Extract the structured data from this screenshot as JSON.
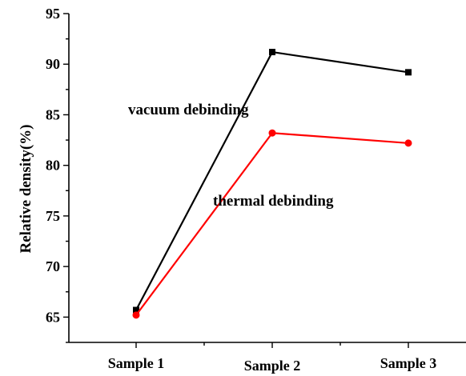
{
  "chart_data": {
    "type": "line",
    "categories": [
      "Sample 1",
      "Sample 2",
      "Sample 3"
    ],
    "series": [
      {
        "values": [
          65.7,
          91.2,
          89.2
        ],
        "color": "#000000",
        "marker": "square"
      },
      {
        "values": [
          65.2,
          83.2,
          82.2
        ],
        "color": "#ff0000",
        "marker": "circle"
      }
    ],
    "ylabel": "Relative density(%)",
    "xlabel": "",
    "ylim": [
      62.5,
      95
    ],
    "yticks": [
      65,
      70,
      75,
      80,
      85,
      90,
      95
    ],
    "annotations": [
      "vacuum debinding",
      "thermal debinding"
    ],
    "grid": false,
    "legend": "none"
  }
}
